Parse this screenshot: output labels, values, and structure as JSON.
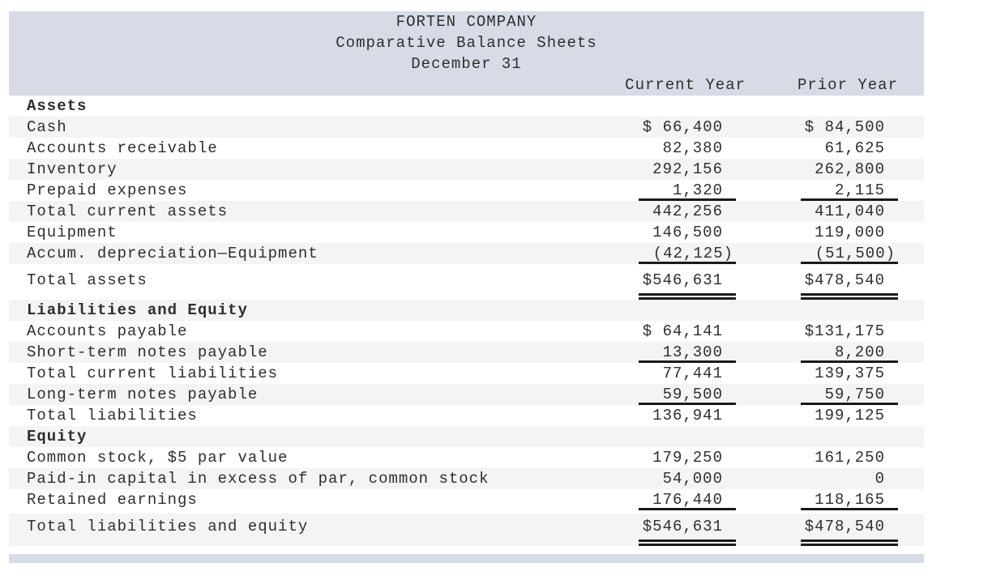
{
  "theme": {
    "header_bg": "#d6dbe5",
    "row_alt_bg": "#f4f4f5",
    "page_bg": "#ffffff",
    "text_color": "#2e2e2e",
    "rule_color": "#1a1a1a"
  },
  "header": {
    "company": "FORTEN COMPANY",
    "title": "Comparative Balance Sheets",
    "date": "December 31",
    "columns": [
      "Current Year",
      "Prior Year"
    ]
  },
  "rows": [
    {
      "label": "Assets",
      "type": "section",
      "current": "",
      "prior": "",
      "shaded": false,
      "underline": "none"
    },
    {
      "label": "Cash",
      "type": "item",
      "current": "$ 66,400",
      "prior": "$ 84,500",
      "shaded": true,
      "underline": "none"
    },
    {
      "label": "Accounts receivable",
      "type": "item",
      "current": "82,380",
      "prior": "61,625",
      "shaded": false,
      "underline": "none"
    },
    {
      "label": "Inventory",
      "type": "item",
      "current": "292,156",
      "prior": "262,800",
      "shaded": true,
      "underline": "none"
    },
    {
      "label": "Prepaid expenses",
      "type": "item",
      "current": "1,320",
      "prior": "2,115",
      "shaded": false,
      "underline": "single"
    },
    {
      "label": "Total current assets",
      "type": "item",
      "current": "442,256",
      "prior": "411,040",
      "shaded": true,
      "underline": "none"
    },
    {
      "label": "Equipment",
      "type": "item",
      "current": "146,500",
      "prior": "119,000",
      "shaded": false,
      "underline": "none"
    },
    {
      "label": "Accum. depreciation—Equipment",
      "type": "item",
      "current": "(42,125)",
      "prior": "(51,500)",
      "shaded": true,
      "underline": "single"
    },
    {
      "label": "Total assets",
      "type": "total",
      "current": "$546,631",
      "prior": "$478,540",
      "shaded": false,
      "underline": "double"
    },
    {
      "label": "Liabilities and Equity",
      "type": "section",
      "current": "",
      "prior": "",
      "shaded": true,
      "underline": "none"
    },
    {
      "label": "Accounts payable",
      "type": "item",
      "current": "$ 64,141",
      "prior": "$131,175",
      "shaded": false,
      "underline": "none"
    },
    {
      "label": "Short-term notes payable",
      "type": "item",
      "current": "13,300",
      "prior": "8,200",
      "shaded": true,
      "underline": "single"
    },
    {
      "label": "Total current liabilities",
      "type": "item",
      "current": "77,441",
      "prior": "139,375",
      "shaded": false,
      "underline": "none"
    },
    {
      "label": "Long-term notes payable",
      "type": "item",
      "current": "59,500",
      "prior": "59,750",
      "shaded": true,
      "underline": "single"
    },
    {
      "label": "Total liabilities",
      "type": "item",
      "current": "136,941",
      "prior": "199,125",
      "shaded": false,
      "underline": "none"
    },
    {
      "label": "Equity",
      "type": "section",
      "current": "",
      "prior": "",
      "shaded": true,
      "underline": "none"
    },
    {
      "label": "Common stock, $5 par value",
      "type": "item",
      "current": "179,250",
      "prior": "161,250",
      "shaded": false,
      "underline": "none"
    },
    {
      "label": "Paid-in capital in excess of par, common stock",
      "type": "item",
      "current": "54,000",
      "prior": "0",
      "shaded": true,
      "underline": "none"
    },
    {
      "label": "Retained earnings",
      "type": "item",
      "current": "176,440",
      "prior": "118,165",
      "shaded": false,
      "underline": "single"
    },
    {
      "label": "Total liabilities and equity",
      "type": "total",
      "current": "$546,631",
      "prior": "$478,540",
      "shaded": true,
      "underline": "double"
    }
  ]
}
